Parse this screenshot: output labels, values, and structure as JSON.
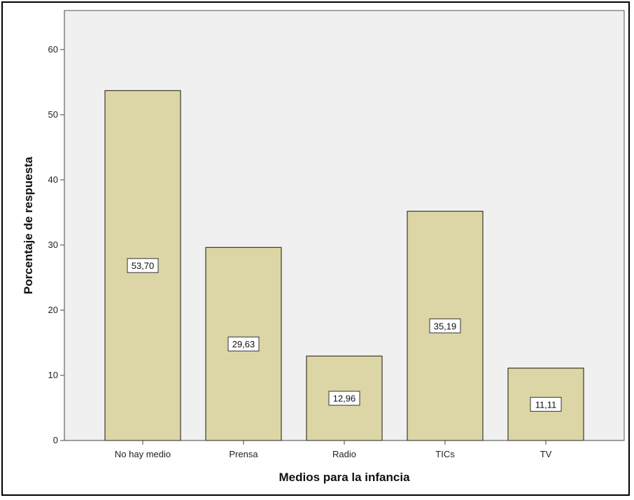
{
  "chart_data": {
    "type": "bar",
    "categories": [
      "No hay medio",
      "Prensa",
      "Radio",
      "TICs",
      "TV"
    ],
    "values": [
      53.7,
      29.63,
      12.96,
      35.19,
      11.11
    ],
    "data_labels": [
      "53,70",
      "29,63",
      "12,96",
      "35,19",
      "11,11"
    ],
    "xlabel": "Medios para la infancia",
    "ylabel": "Porcentaje de respuesta",
    "ylim": [
      0,
      66
    ],
    "yticks": [
      0,
      10,
      20,
      30,
      40,
      50,
      60
    ],
    "grid": false,
    "legend": "none",
    "colors": {
      "bar_fill": "#dcd6a6",
      "bar_stroke": "#3a3a2a",
      "plot_background": "#f0f0f0",
      "frame": "#000000"
    }
  }
}
